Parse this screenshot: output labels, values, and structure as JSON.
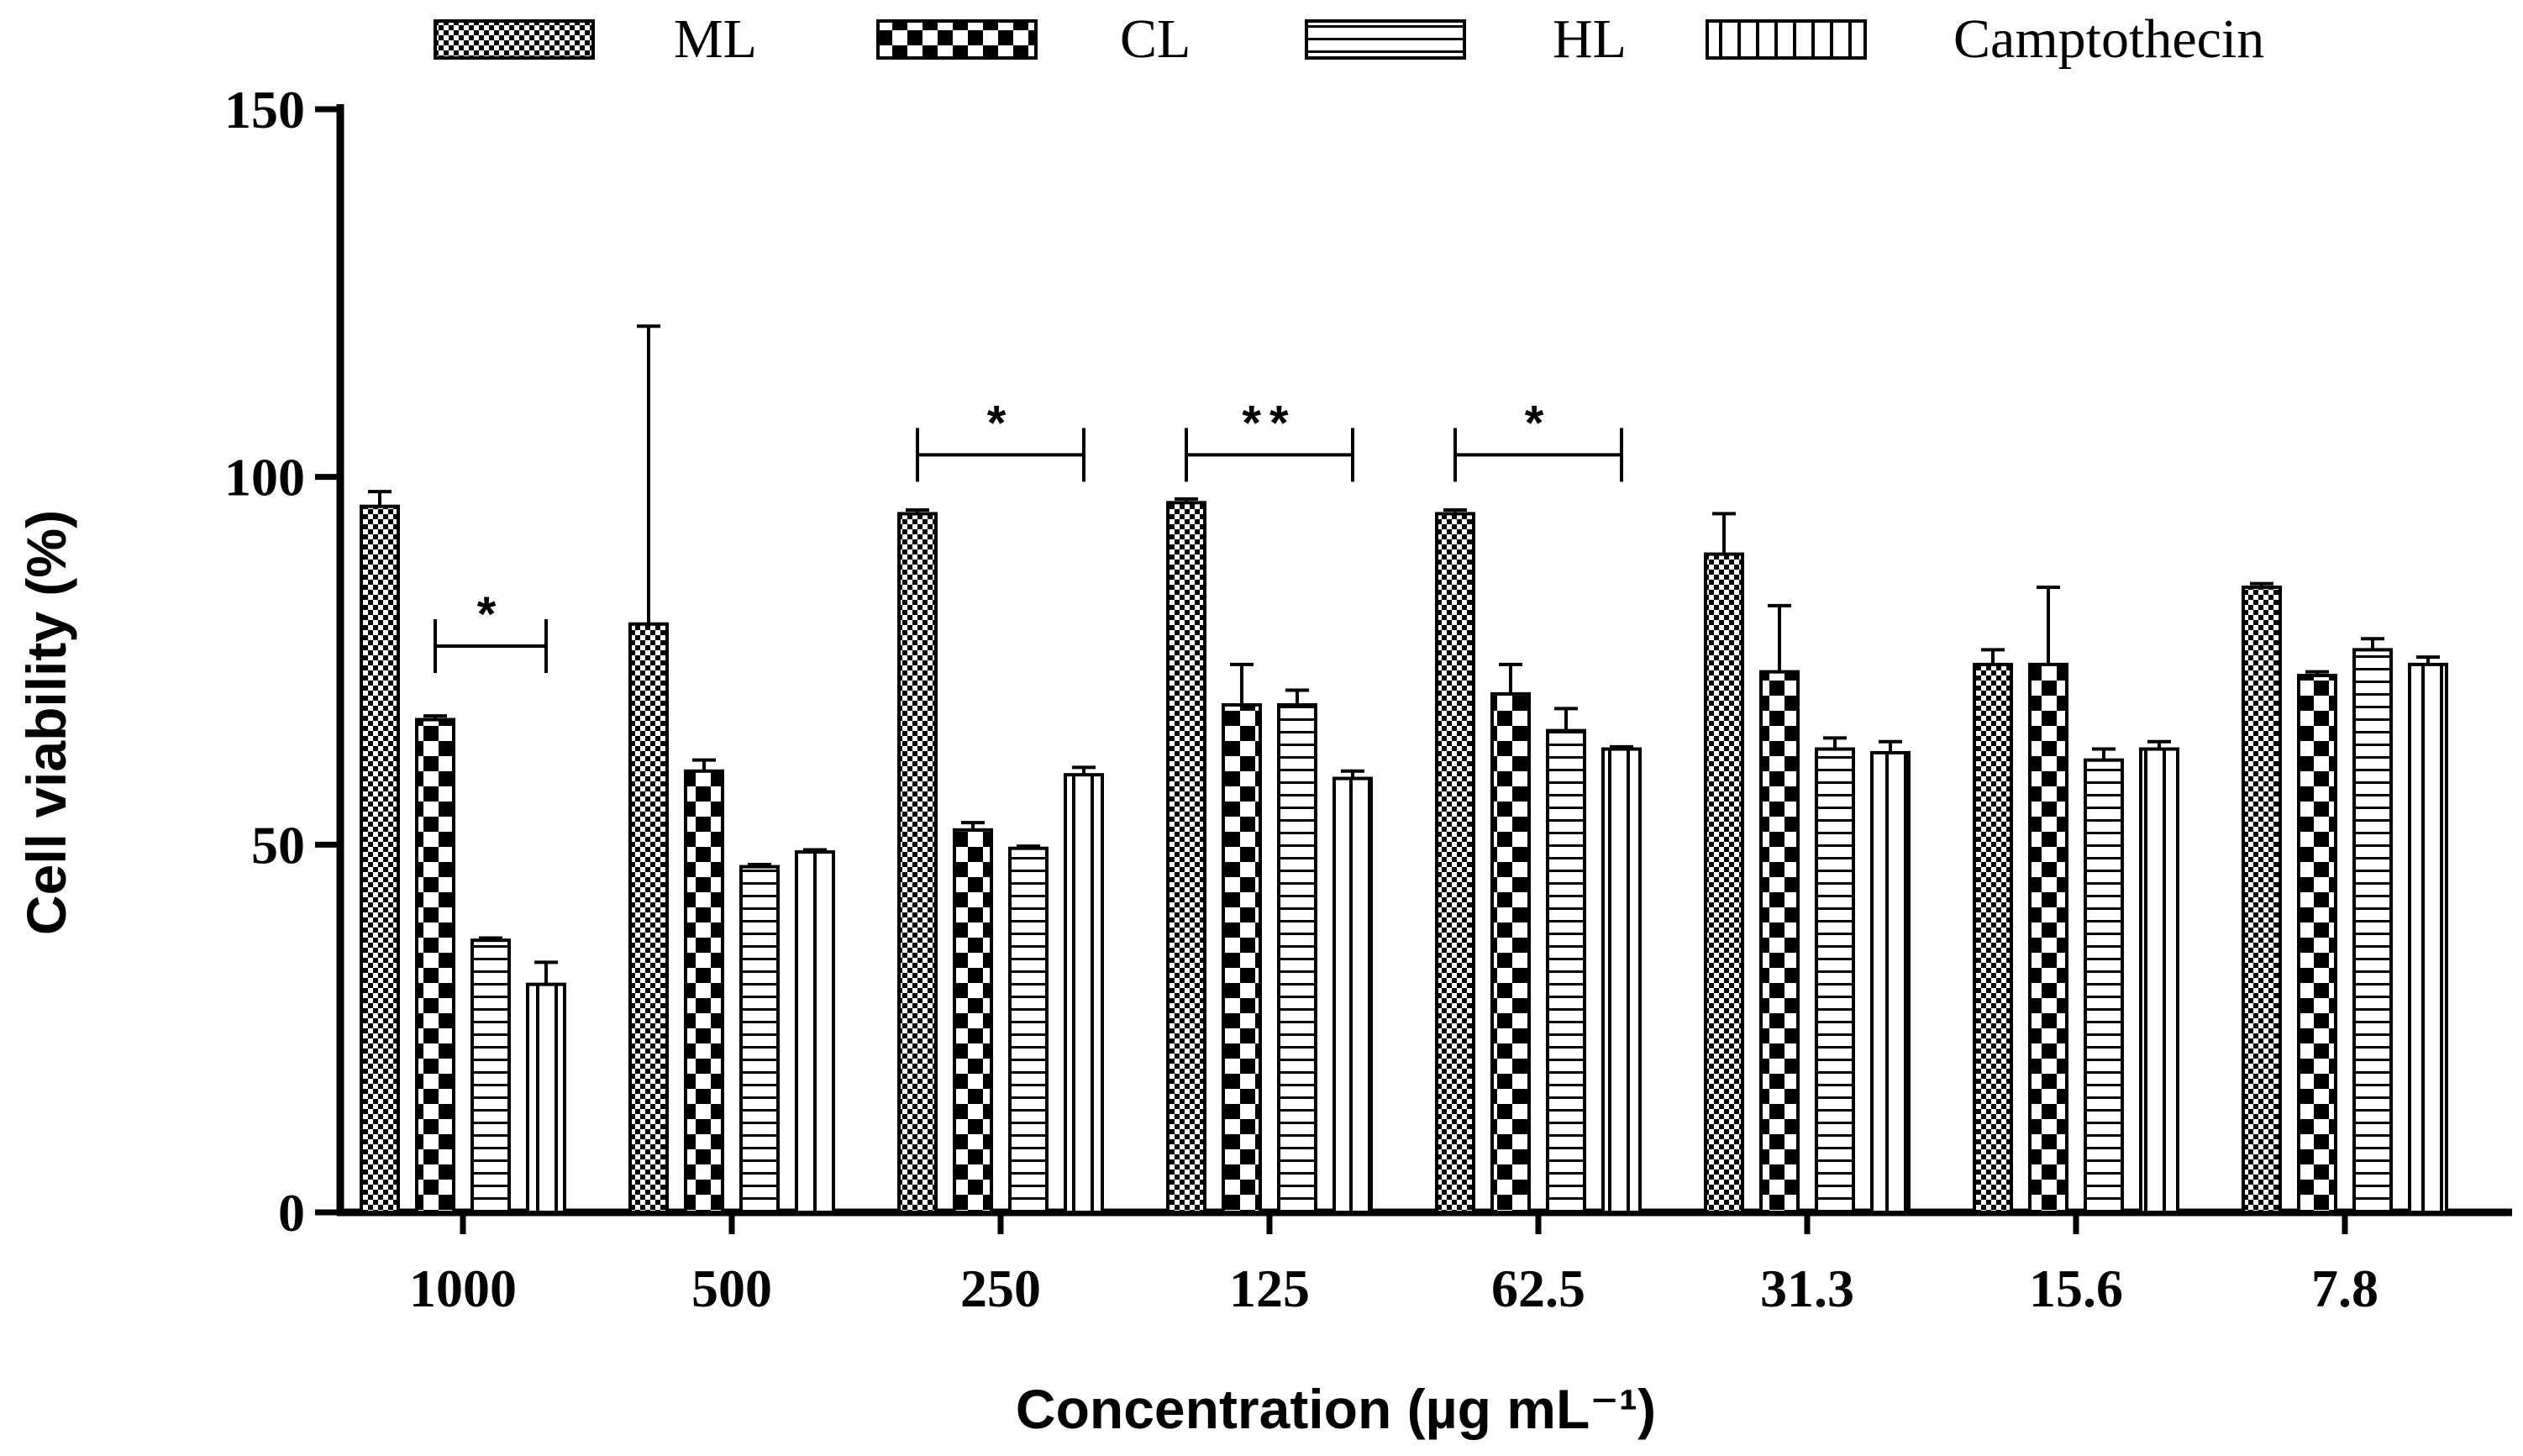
{
  "chart_data": {
    "type": "bar",
    "title": "",
    "xlabel": "Concentration (µg mL⁻¹)",
    "ylabel": "Cell viability (%)",
    "ylim": [
      0,
      150
    ],
    "yticks": [
      "0",
      "50",
      "100",
      "150"
    ],
    "categories": [
      "1000",
      "500",
      "250",
      "125",
      "62.5",
      "31.3",
      "15.6",
      "7.8"
    ],
    "legend_position": "top",
    "series": [
      {
        "name": "ML",
        "pattern": "checker-fine",
        "values": [
          96,
          80,
          95,
          96.5,
          95,
          89.5,
          74.5,
          85
        ],
        "errors": [
          2,
          40.5,
          0.5,
          0.5,
          0.5,
          5.5,
          2,
          0.5
        ]
      },
      {
        "name": "CL",
        "pattern": "checker-large",
        "values": [
          67,
          60,
          52,
          69,
          70.5,
          73.5,
          74.5,
          73
        ],
        "errors": [
          0.5,
          1.5,
          1,
          5.5,
          4,
          9,
          10.5,
          0.5
        ]
      },
      {
        "name": "HL",
        "pattern": "horizontal-lines",
        "values": [
          37,
          47,
          49.5,
          69,
          65.5,
          63,
          61.5,
          76.5
        ],
        "errors": [
          0.3,
          0.3,
          0.3,
          2,
          3,
          1.5,
          1.5,
          1.5
        ]
      },
      {
        "name": "Camptothecin",
        "pattern": "vertical-lines",
        "values": [
          31,
          49,
          59.5,
          59,
          63,
          62.5,
          63,
          74.5
        ],
        "errors": [
          3,
          0.3,
          1,
          1,
          0.3,
          1.5,
          1,
          1
        ]
      }
    ],
    "annotations": [
      {
        "label": "*",
        "category_index": 0,
        "from_series": 1,
        "to_series": 3,
        "y": 77
      },
      {
        "label": "*",
        "category_index": 2,
        "from_series": 0,
        "to_series": 3,
        "y": 103
      },
      {
        "label": "**",
        "category_index": 3,
        "from_series": 0,
        "to_series": 3,
        "y": 103
      },
      {
        "label": "*",
        "category_index": 4,
        "from_series": 0,
        "to_series": 3,
        "y": 103
      }
    ]
  }
}
